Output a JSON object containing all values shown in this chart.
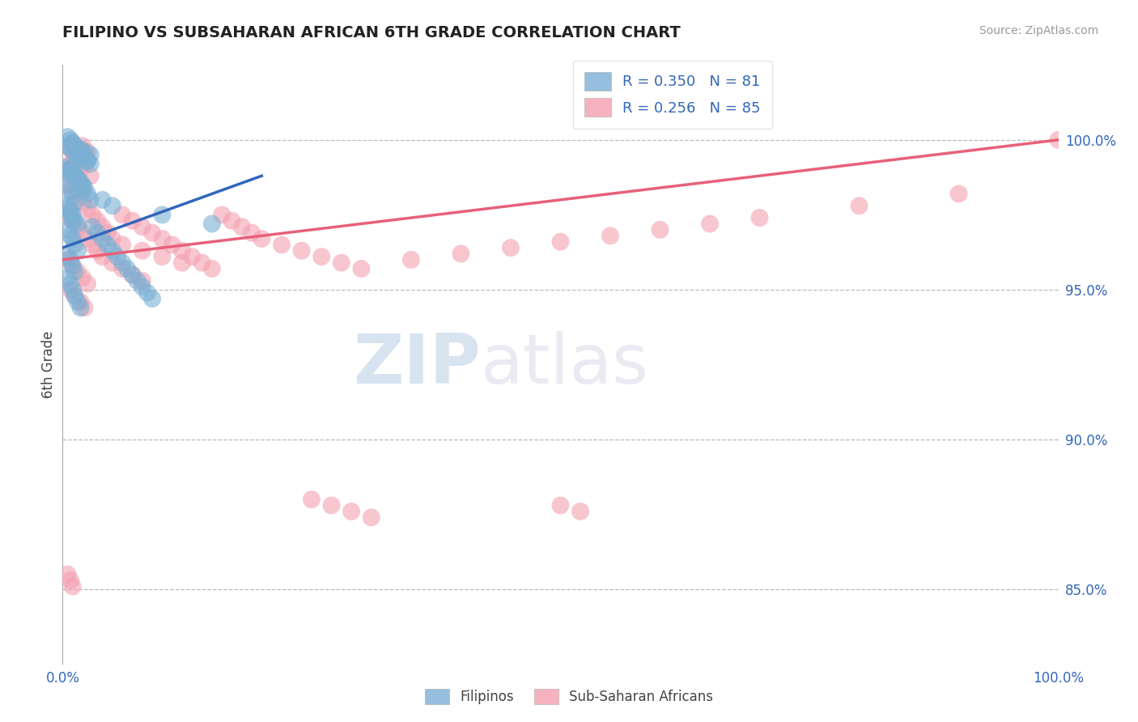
{
  "title": "FILIPINO VS SUBSAHARAN AFRICAN 6TH GRADE CORRELATION CHART",
  "source_text": "Source: ZipAtlas.com",
  "ylabel": "6th Grade",
  "xlim": [
    0.0,
    1.0
  ],
  "ylim": [
    0.825,
    1.025
  ],
  "xtick_labels": [
    "0.0%",
    "100.0%"
  ],
  "ytick_vals": [
    0.85,
    0.9,
    0.95,
    1.0
  ],
  "ytick_labels": [
    "85.0%",
    "90.0%",
    "95.0%",
    "100.0%"
  ],
  "legend_r_values": [
    "R = 0.350   N = 81",
    "R = 0.256   N = 85"
  ],
  "blue_color": "#7BAFD4",
  "pink_color": "#F4A0B0",
  "blue_line_color": "#3366BB",
  "pink_line_color": "#E8607A",
  "watermark_zip": "ZIP",
  "watermark_atlas": "atlas",
  "background_color": "#FFFFFF",
  "grid_color": "#BBBBBB",
  "blue_scatter_x": [
    0.005,
    0.008,
    0.01,
    0.012,
    0.015,
    0.018,
    0.02,
    0.022,
    0.025,
    0.028,
    0.005,
    0.008,
    0.01,
    0.012,
    0.015,
    0.018,
    0.02,
    0.022,
    0.025,
    0.028,
    0.005,
    0.008,
    0.01,
    0.012,
    0.015,
    0.005,
    0.008,
    0.01,
    0.012,
    0.015,
    0.005,
    0.008,
    0.01,
    0.012,
    0.005,
    0.008,
    0.01,
    0.012,
    0.015,
    0.018,
    0.005,
    0.008,
    0.01,
    0.012,
    0.005,
    0.008,
    0.01,
    0.03,
    0.035,
    0.04,
    0.045,
    0.05,
    0.055,
    0.06,
    0.065,
    0.07,
    0.075,
    0.08,
    0.085,
    0.09,
    0.005,
    0.008,
    0.01,
    0.012,
    0.015,
    0.018,
    0.02,
    0.022,
    0.025,
    0.028,
    0.005,
    0.008,
    0.01,
    0.012,
    0.015,
    0.018,
    0.02,
    0.04,
    0.05,
    0.1,
    0.15
  ],
  "blue_scatter_y": [
    0.998,
    0.997,
    0.999,
    0.996,
    0.995,
    0.997,
    0.994,
    0.996,
    0.993,
    0.995,
    0.99,
    0.988,
    0.991,
    0.989,
    0.987,
    0.985,
    0.983,
    0.984,
    0.982,
    0.98,
    0.978,
    0.976,
    0.975,
    0.973,
    0.972,
    0.97,
    0.968,
    0.967,
    0.965,
    0.963,
    0.961,
    0.96,
    0.958,
    0.956,
    0.954,
    0.952,
    0.95,
    0.948,
    0.946,
    0.944,
    0.985,
    0.983,
    0.981,
    0.979,
    0.977,
    0.975,
    0.973,
    0.971,
    0.969,
    0.967,
    0.965,
    0.963,
    0.961,
    0.959,
    0.957,
    0.955,
    0.953,
    0.951,
    0.949,
    0.947,
    1.001,
    1.0,
    0.999,
    0.998,
    0.997,
    0.996,
    0.995,
    0.994,
    0.993,
    0.992,
    0.991,
    0.99,
    0.989,
    0.988,
    0.987,
    0.986,
    0.985,
    0.98,
    0.978,
    0.975,
    0.972
  ],
  "pink_scatter_x": [
    0.005,
    0.01,
    0.015,
    0.02,
    0.025,
    0.008,
    0.012,
    0.018,
    0.022,
    0.028,
    0.005,
    0.01,
    0.015,
    0.02,
    0.025,
    0.03,
    0.035,
    0.04,
    0.045,
    0.05,
    0.06,
    0.07,
    0.08,
    0.09,
    0.1,
    0.11,
    0.12,
    0.13,
    0.14,
    0.15,
    0.16,
    0.17,
    0.18,
    0.19,
    0.2,
    0.22,
    0.24,
    0.26,
    0.28,
    0.3,
    0.35,
    0.4,
    0.45,
    0.5,
    0.55,
    0.6,
    0.65,
    0.7,
    0.8,
    0.9,
    1.0,
    0.005,
    0.01,
    0.015,
    0.02,
    0.025,
    0.008,
    0.012,
    0.018,
    0.022,
    0.06,
    0.08,
    0.1,
    0.12,
    0.005,
    0.01,
    0.015,
    0.02,
    0.025,
    0.03,
    0.035,
    0.04,
    0.05,
    0.06,
    0.07,
    0.08,
    0.25,
    0.27,
    0.29,
    0.31,
    0.5,
    0.52,
    0.005,
    0.008,
    0.01
  ],
  "pink_scatter_y": [
    0.998,
    0.996,
    0.994,
    0.998,
    0.996,
    0.992,
    0.994,
    0.99,
    0.992,
    0.988,
    0.985,
    0.983,
    0.981,
    0.979,
    0.977,
    0.975,
    0.973,
    0.971,
    0.969,
    0.967,
    0.975,
    0.973,
    0.971,
    0.969,
    0.967,
    0.965,
    0.963,
    0.961,
    0.959,
    0.957,
    0.975,
    0.973,
    0.971,
    0.969,
    0.967,
    0.965,
    0.963,
    0.961,
    0.959,
    0.957,
    0.96,
    0.962,
    0.964,
    0.966,
    0.968,
    0.97,
    0.972,
    0.974,
    0.978,
    0.982,
    1.0,
    0.96,
    0.958,
    0.956,
    0.954,
    0.952,
    0.95,
    0.948,
    0.946,
    0.944,
    0.965,
    0.963,
    0.961,
    0.959,
    0.975,
    0.973,
    0.971,
    0.969,
    0.967,
    0.965,
    0.963,
    0.961,
    0.959,
    0.957,
    0.955,
    0.953,
    0.88,
    0.878,
    0.876,
    0.874,
    0.878,
    0.876,
    0.855,
    0.853,
    0.851
  ]
}
